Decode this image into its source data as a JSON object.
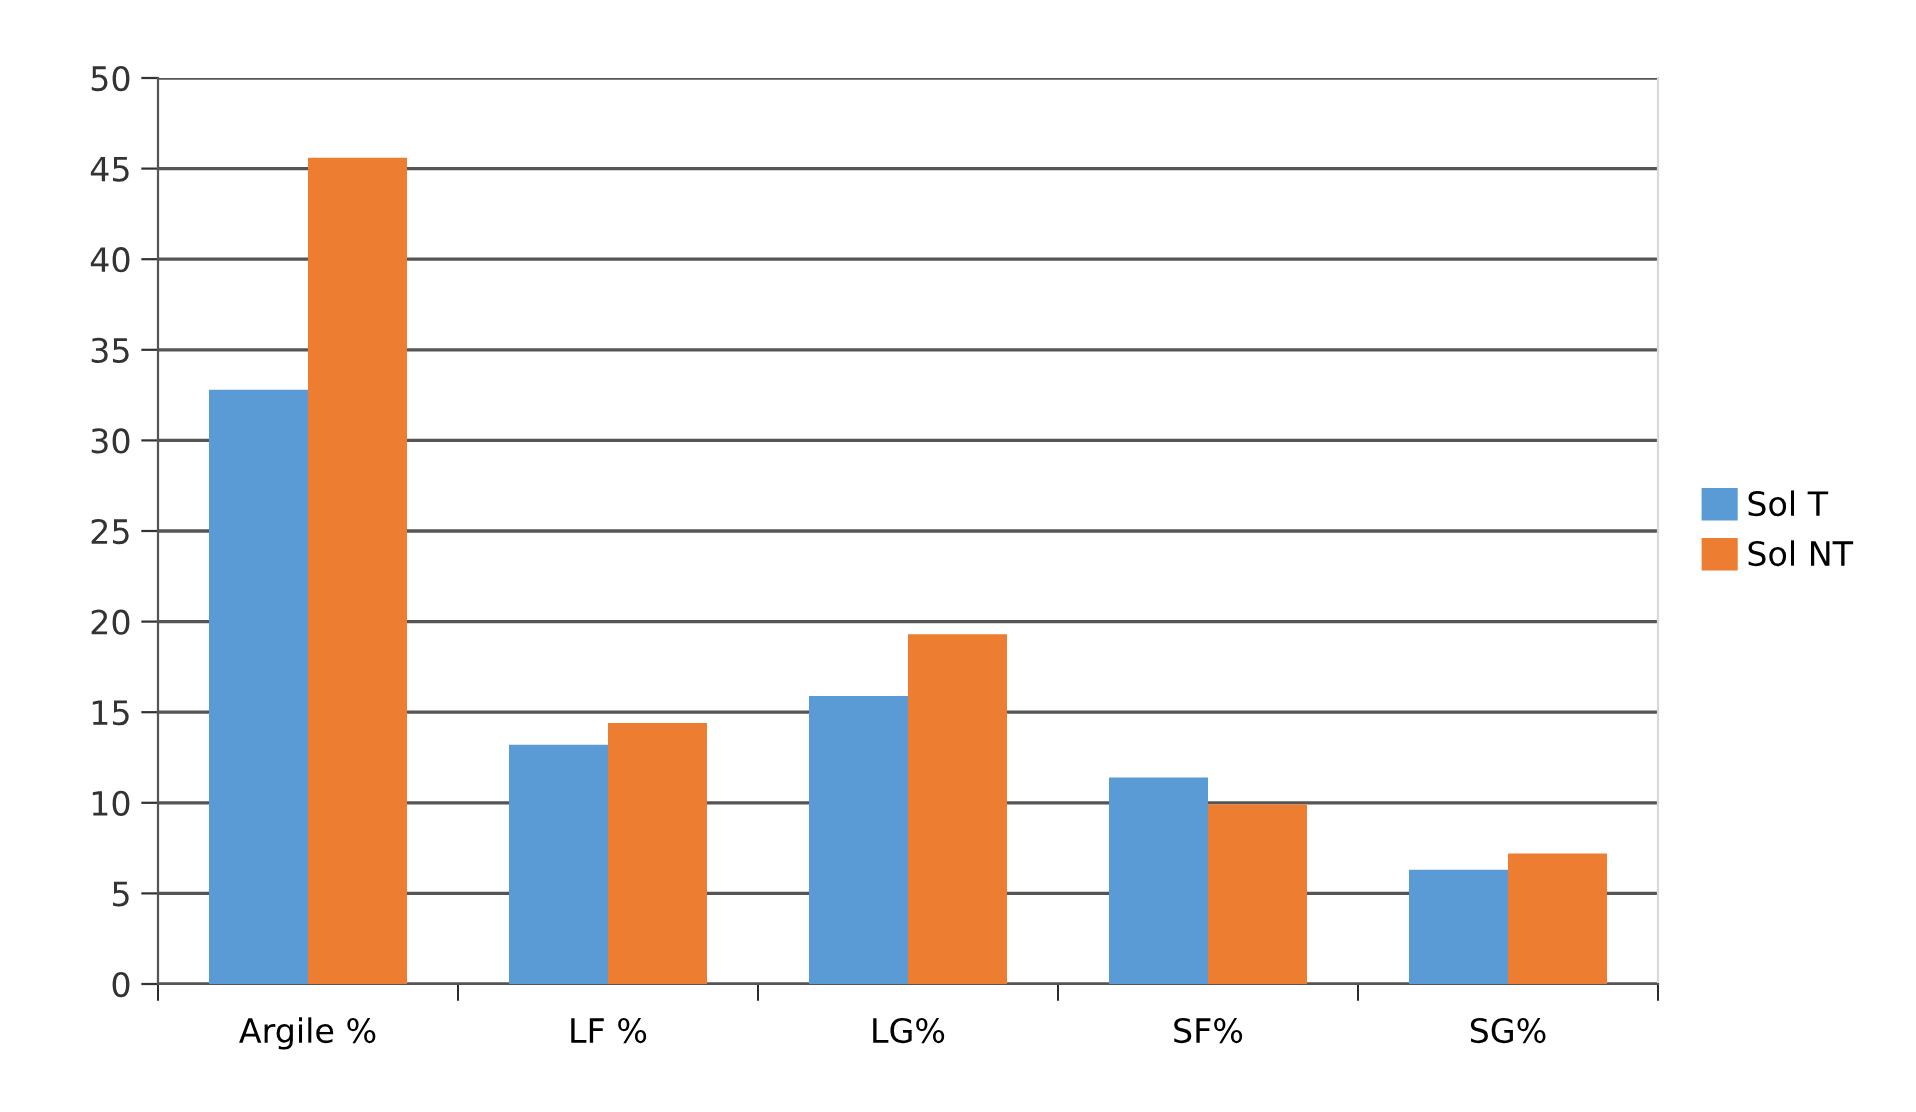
{
  "chart_data": {
    "type": "bar",
    "categories": [
      "Argile %",
      "LF %",
      "LG%",
      "SF%",
      "SG%"
    ],
    "series": [
      {
        "name": "Sol T",
        "color": "#5b9bd5",
        "values": [
          32.8,
          13.2,
          15.9,
          11.4,
          6.3
        ]
      },
      {
        "name": "Sol NT",
        "color": "#ed7d31",
        "values": [
          45.6,
          14.4,
          19.3,
          9.9,
          7.2
        ]
      }
    ],
    "ylim": [
      0,
      50
    ],
    "yticks": [
      0,
      5,
      10,
      15,
      20,
      25,
      30,
      35,
      40,
      45,
      50
    ],
    "grid": "y",
    "legend": "right"
  }
}
